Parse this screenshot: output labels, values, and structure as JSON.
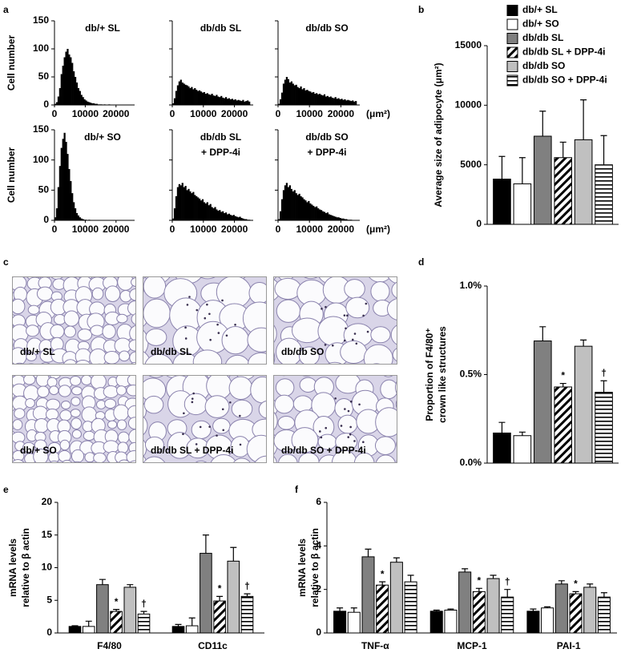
{
  "chart_data": [
    {
      "type": "histogram",
      "panel": "a",
      "title": "db/+ SL",
      "ylabel": "Cell number",
      "color": "#000000",
      "show_ytick_labels": true,
      "bins": [
        0,
        500,
        1000,
        1500,
        2000,
        2500,
        3000,
        3500,
        4000,
        4500,
        5000,
        5500,
        6000,
        6500,
        7000,
        7500,
        8000,
        8500,
        9000,
        9500,
        10000,
        10500,
        11000,
        11500,
        12000,
        12500,
        13000,
        13500,
        14000,
        14500,
        15000,
        15500,
        16000,
        16500,
        17000,
        17500,
        18000,
        18500,
        19000,
        19500,
        20000,
        20500,
        21000,
        21500,
        22000,
        22500,
        23000,
        23500,
        24000,
        24500,
        25000
      ],
      "counts": [
        2,
        5,
        15,
        30,
        55,
        70,
        85,
        95,
        100,
        90,
        85,
        75,
        60,
        50,
        40,
        30,
        25,
        18,
        14,
        10,
        8,
        6,
        5,
        4,
        3,
        3,
        2,
        2,
        1,
        1,
        1,
        0,
        1,
        0,
        0,
        1,
        0,
        0,
        0,
        0,
        0,
        0,
        0,
        0,
        0,
        0,
        0,
        0,
        0,
        0
      ],
      "xlim": [
        0,
        25000
      ],
      "xticks": [
        0,
        10000,
        20000
      ],
      "ylim": [
        0,
        150
      ],
      "yticks": [
        0,
        50,
        100,
        150
      ]
    },
    {
      "type": "histogram",
      "title": "db/db SL",
      "color": "#000000",
      "show_ytick_labels": false,
      "bins": [
        0,
        500,
        1000,
        1500,
        2000,
        2500,
        3000,
        3500,
        4000,
        4500,
        5000,
        5500,
        6000,
        6500,
        7000,
        7500,
        8000,
        8500,
        9000,
        9500,
        10000,
        10500,
        11000,
        11500,
        12000,
        12500,
        13000,
        13500,
        14000,
        14500,
        15000,
        15500,
        16000,
        16500,
        17000,
        17500,
        18000,
        18500,
        19000,
        19500,
        20000,
        20500,
        21000,
        21500,
        22000,
        22500,
        23000,
        23500,
        24000,
        24500,
        25000
      ],
      "counts": [
        3,
        12,
        25,
        35,
        42,
        45,
        40,
        38,
        36,
        35,
        33,
        30,
        32,
        28,
        30,
        27,
        25,
        26,
        24,
        22,
        23,
        20,
        21,
        19,
        18,
        20,
        17,
        16,
        18,
        15,
        14,
        16,
        13,
        12,
        14,
        11,
        12,
        10,
        11,
        9,
        10,
        8,
        9,
        8,
        7,
        9,
        6,
        7,
        8,
        6
      ],
      "xlim": [
        0,
        25000
      ],
      "xticks": [
        0,
        10000,
        20000
      ],
      "ylim": [
        0,
        150
      ],
      "yticks": [
        0,
        50,
        100,
        150
      ]
    },
    {
      "type": "histogram",
      "title": "db/db SO",
      "xlabel": "(μm²)",
      "color": "#000000",
      "show_ytick_labels": false,
      "bins": [
        0,
        500,
        1000,
        1500,
        2000,
        2500,
        3000,
        3500,
        4000,
        4500,
        5000,
        5500,
        6000,
        6500,
        7000,
        7500,
        8000,
        8500,
        9000,
        9500,
        10000,
        10500,
        11000,
        11500,
        12000,
        12500,
        13000,
        13500,
        14000,
        14500,
        15000,
        15500,
        16000,
        16500,
        17000,
        17500,
        18000,
        18500,
        19000,
        19500,
        20000,
        20500,
        21000,
        21500,
        22000,
        22500,
        23000,
        23500,
        24000,
        24500,
        25000
      ],
      "counts": [
        2,
        10,
        22,
        38,
        45,
        50,
        46,
        40,
        42,
        38,
        35,
        36,
        32,
        30,
        33,
        28,
        30,
        26,
        27,
        25,
        24,
        22,
        23,
        20,
        21,
        19,
        20,
        18,
        17,
        19,
        15,
        16,
        14,
        15,
        13,
        12,
        14,
        11,
        12,
        10,
        11,
        9,
        10,
        8,
        9,
        8,
        7,
        8,
        6,
        7
      ],
      "xlim": [
        0,
        25000
      ],
      "xticks": [
        0,
        10000,
        20000
      ],
      "ylim": [
        0,
        150
      ],
      "yticks": [
        0,
        50,
        100,
        150
      ]
    },
    {
      "type": "histogram",
      "title": "db/+ SO",
      "ylabel": "Cell number",
      "color": "#000000",
      "show_ytick_labels": true,
      "bins": [
        0,
        500,
        1000,
        1500,
        2000,
        2500,
        3000,
        3500,
        4000,
        4500,
        5000,
        5500,
        6000,
        6500,
        7000,
        7500,
        8000,
        8500,
        9000,
        9500,
        10000,
        10500,
        11000,
        11500,
        12000,
        12500,
        13000,
        13500,
        14000,
        14500,
        15000,
        15500,
        16000,
        16500,
        17000,
        17500,
        18000,
        18500,
        19000,
        19500,
        20000,
        20500,
        21000,
        21500,
        22000,
        22500,
        23000,
        23500,
        24000,
        24500,
        25000
      ],
      "counts": [
        5,
        20,
        55,
        90,
        120,
        135,
        145,
        130,
        110,
        85,
        65,
        45,
        30,
        20,
        12,
        8,
        5,
        3,
        2,
        1,
        1,
        0,
        1,
        0,
        0,
        0,
        0,
        0,
        0,
        0,
        0,
        0,
        0,
        0,
        0,
        0,
        0,
        0,
        0,
        0,
        0,
        0,
        0,
        0,
        0,
        0,
        0,
        0,
        0,
        0
      ],
      "xlim": [
        0,
        25000
      ],
      "xticks": [
        0,
        10000,
        20000
      ],
      "ylim": [
        0,
        150
      ],
      "yticks": [
        0,
        50,
        100,
        150
      ]
    },
    {
      "type": "histogram",
      "title": [
        "db/db SL",
        "+ DPP-4i"
      ],
      "color": "#000000",
      "show_ytick_labels": false,
      "bins": [
        0,
        500,
        1000,
        1500,
        2000,
        2500,
        3000,
        3500,
        4000,
        4500,
        5000,
        5500,
        6000,
        6500,
        7000,
        7500,
        8000,
        8500,
        9000,
        9500,
        10000,
        10500,
        11000,
        11500,
        12000,
        12500,
        13000,
        13500,
        14000,
        14500,
        15000,
        15500,
        16000,
        16500,
        17000,
        17500,
        18000,
        18500,
        19000,
        19500,
        20000,
        20500,
        21000,
        21500,
        22000,
        22500,
        23000,
        23500,
        24000,
        24500,
        25000
      ],
      "counts": [
        3,
        20,
        40,
        55,
        60,
        58,
        62,
        55,
        57,
        50,
        52,
        48,
        45,
        47,
        42,
        40,
        38,
        36,
        33,
        35,
        30,
        28,
        30,
        25,
        27,
        22,
        20,
        22,
        18,
        16,
        17,
        14,
        15,
        12,
        13,
        10,
        11,
        9,
        8,
        9,
        7,
        6,
        5,
        6,
        4,
        3,
        2,
        2,
        1,
        1
      ],
      "xlim": [
        0,
        25000
      ],
      "xticks": [
        0,
        10000,
        20000
      ],
      "ylim": [
        0,
        150
      ],
      "yticks": [
        0,
        50,
        100,
        150
      ]
    },
    {
      "type": "histogram",
      "title": [
        "db/db SO",
        "+ DPP-4i"
      ],
      "xlabel": "(μm²)",
      "color": "#000000",
      "show_ytick_labels": false,
      "bins": [
        0,
        500,
        1000,
        1500,
        2000,
        2500,
        3000,
        3500,
        4000,
        4500,
        5000,
        5500,
        6000,
        6500,
        7000,
        7500,
        8000,
        8500,
        9000,
        9500,
        10000,
        10500,
        11000,
        11500,
        12000,
        12500,
        13000,
        13500,
        14000,
        14500,
        15000,
        15500,
        16000,
        16500,
        17000,
        17500,
        18000,
        18500,
        19000,
        19500,
        20000,
        20500,
        21000,
        21500,
        22000,
        22500,
        23000,
        23500,
        24000,
        24500,
        25000
      ],
      "counts": [
        2,
        15,
        35,
        50,
        58,
        62,
        55,
        58,
        52,
        48,
        50,
        45,
        42,
        44,
        40,
        38,
        35,
        33,
        30,
        32,
        28,
        26,
        24,
        22,
        23,
        20,
        18,
        17,
        15,
        14,
        12,
        13,
        10,
        9,
        8,
        7,
        6,
        5,
        5,
        4,
        3,
        3,
        2,
        2,
        1,
        1,
        1,
        0,
        0,
        0
      ],
      "xlim": [
        0,
        25000
      ],
      "xticks": [
        0,
        10000,
        20000
      ],
      "ylim": [
        0,
        150
      ],
      "yticks": [
        0,
        50,
        100,
        150
      ]
    },
    {
      "type": "bar",
      "panel": "b",
      "ylabel": "Average size of adipocyte (μm²)",
      "legend": "top-right",
      "ylim": [
        0,
        15000
      ],
      "yticks": [
        0,
        5000,
        10000,
        15000
      ],
      "series": [
        {
          "name": "db/+ SL",
          "color": "#000000",
          "values": [
            3800
          ],
          "errors": [
            1900
          ]
        },
        {
          "name": "db/+ SO",
          "color": "#ffffff",
          "values": [
            3400
          ],
          "errors": [
            2200
          ]
        },
        {
          "name": "db/db SL",
          "color": "#808080",
          "values": [
            7400
          ],
          "errors": [
            2100
          ]
        },
        {
          "name": "db/db SL + DPP-4i",
          "color": "#ffffff",
          "pattern": "diagonal",
          "values": [
            5600
          ],
          "errors": [
            1300
          ]
        },
        {
          "name": "db/db SO",
          "color": "#c0c0c0",
          "values": [
            7100
          ],
          "errors": [
            3350
          ]
        },
        {
          "name": "db/db SO + DPP-4i",
          "color": "#ffffff",
          "pattern": "horizontal",
          "values": [
            5000
          ],
          "errors": [
            2450
          ]
        }
      ]
    },
    {
      "type": "image",
      "panel": "c",
      "labels": [
        "db/+ SL",
        "db/db SL",
        "db/db SO",
        "db/+ SO",
        "db/db SL + DPP-4i",
        "db/db SO + DPP-4i"
      ]
    },
    {
      "type": "bar",
      "panel": "d",
      "ylabel": [
        "Proportion of F4/80⁺",
        "crown like structures"
      ],
      "ylim": [
        0,
        1
      ],
      "yticks": [
        {
          "value": 0,
          "label": "0.0%"
        },
        {
          "value": 0.5,
          "label": "0.5%"
        },
        {
          "value": 1,
          "label": "1.0%"
        }
      ],
      "series": [
        {
          "color": "#000000",
          "values": [
            0.17
          ],
          "errors": [
            0.06
          ]
        },
        {
          "color": "#ffffff",
          "values": [
            0.155
          ],
          "errors": [
            0.02
          ]
        },
        {
          "color": "#808080",
          "values": [
            0.69
          ],
          "errors": [
            0.08
          ]
        },
        {
          "color": "#ffffff",
          "pattern": "diagonal",
          "values": [
            0.43
          ],
          "errors": [
            0.02
          ],
          "notes": [
            "*"
          ]
        },
        {
          "color": "#c0c0c0",
          "values": [
            0.66
          ],
          "errors": [
            0.035
          ]
        },
        {
          "color": "#ffffff",
          "pattern": "horizontal",
          "values": [
            0.4
          ],
          "errors": [
            0.065
          ],
          "notes": [
            "†"
          ]
        }
      ]
    },
    {
      "type": "bar",
      "panel": "e",
      "ylabel": [
        "mRNA levels",
        "relative  to β actin"
      ],
      "categories": [
        "F4/80",
        "CD11c"
      ],
      "ylim": [
        0,
        20
      ],
      "yticks": [
        0,
        5,
        10,
        15,
        20
      ],
      "series": [
        {
          "color": "#000000",
          "values": [
            1.0,
            1.0
          ],
          "errors": [
            0.1,
            0.3
          ]
        },
        {
          "color": "#ffffff",
          "values": [
            1.0,
            1.1
          ],
          "errors": [
            0.8,
            1.2
          ]
        },
        {
          "color": "#808080",
          "values": [
            7.4,
            12.2
          ],
          "errors": [
            0.8,
            2.8
          ]
        },
        {
          "color": "#ffffff",
          "pattern": "diagonal",
          "values": [
            3.3,
            4.9
          ],
          "errors": [
            0.3,
            0.7
          ],
          "notes": [
            "*",
            "*"
          ]
        },
        {
          "color": "#c0c0c0",
          "values": [
            7.0,
            11.0
          ],
          "errors": [
            0.4,
            2.1
          ]
        },
        {
          "color": "#ffffff",
          "pattern": "horizontal",
          "values": [
            2.9,
            5.6
          ],
          "errors": [
            0.4,
            0.4
          ],
          "notes": [
            "†",
            "†"
          ]
        }
      ]
    },
    {
      "type": "bar",
      "panel": "f",
      "ylabel": [
        "mRNA levels",
        "relative  to β actin"
      ],
      "categories": [
        "TNF-α",
        "MCP-1",
        "PAI-1"
      ],
      "ylim": [
        0,
        6
      ],
      "yticks": [
        0,
        2,
        4,
        6
      ],
      "series": [
        {
          "color": "#000000",
          "values": [
            1.0,
            1.0,
            1.0
          ],
          "errors": [
            0.15,
            0.05,
            0.1
          ]
        },
        {
          "color": "#ffffff",
          "values": [
            0.95,
            1.05,
            1.15
          ],
          "errors": [
            0.2,
            0.05,
            0.05
          ]
        },
        {
          "color": "#808080",
          "values": [
            3.5,
            2.8,
            2.25
          ],
          "errors": [
            0.35,
            0.15,
            0.15
          ]
        },
        {
          "color": "#ffffff",
          "pattern": "diagonal",
          "values": [
            2.2,
            1.9,
            1.8
          ],
          "errors": [
            0.15,
            0.15,
            0.1
          ],
          "notes": [
            "*",
            "*",
            "*"
          ]
        },
        {
          "color": "#c0c0c0",
          "values": [
            3.25,
            2.5,
            2.1
          ],
          "errors": [
            0.2,
            0.15,
            0.15
          ]
        },
        {
          "color": "#ffffff",
          "pattern": "horizontal",
          "values": [
            2.35,
            1.65,
            1.65
          ],
          "errors": [
            0.3,
            0.35,
            0.2
          ],
          "notes": [
            null,
            "†",
            null
          ]
        }
      ]
    }
  ]
}
